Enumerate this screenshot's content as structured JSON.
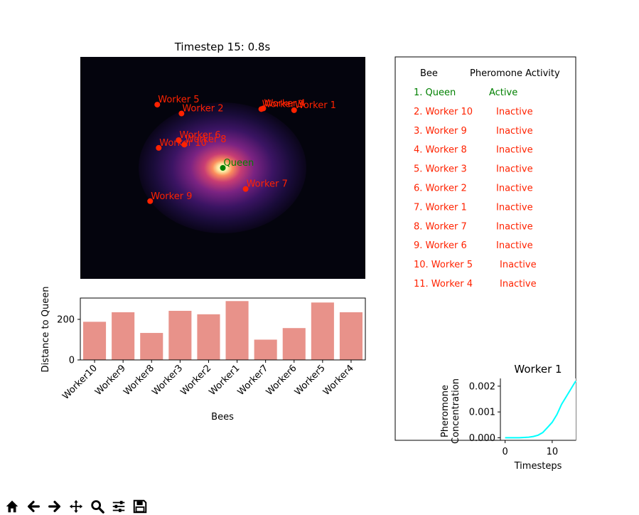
{
  "chart_data": [
    {
      "type": "scatter",
      "title": "Timestep 15: 0.8s",
      "xlim": [
        0,
        100
      ],
      "ylim": [
        0,
        100
      ],
      "background": "heatmap",
      "heatmap_center": [
        50,
        50
      ],
      "points": [
        {
          "name": "Queen",
          "x": 50,
          "y": 50,
          "color": "#008000"
        },
        {
          "name": "Worker 5",
          "x": 27,
          "y": 78.5,
          "color": "#ff2200"
        },
        {
          "name": "Worker 2",
          "x": 35.5,
          "y": 74.5,
          "color": "#ff2200"
        },
        {
          "name": "Worker 3",
          "x": 63.5,
          "y": 76.5,
          "color": "#ff2200"
        },
        {
          "name": "Worker 4",
          "x": 64.2,
          "y": 76.8,
          "color": "#ff2200"
        },
        {
          "name": "Worker 1",
          "x": 75,
          "y": 76,
          "color": "#ff2200"
        },
        {
          "name": "Worker 6",
          "x": 34.5,
          "y": 62.5,
          "color": "#ff2200"
        },
        {
          "name": "Worker 8",
          "x": 36.5,
          "y": 60.5,
          "color": "#ff2200"
        },
        {
          "name": "Worker 10",
          "x": 27.5,
          "y": 59,
          "color": "#ff2200"
        },
        {
          "name": "Worker 7",
          "x": 58,
          "y": 40.5,
          "color": "#ff2200"
        },
        {
          "name": "Worker 9",
          "x": 24.5,
          "y": 35,
          "color": "#ff2200"
        }
      ]
    },
    {
      "type": "bar",
      "categories": [
        "Worker10",
        "Worker9",
        "Worker8",
        "Worker3",
        "Worker2",
        "Worker1",
        "Worker7",
        "Worker6",
        "Worker5",
        "Worker4"
      ],
      "values": [
        188,
        235,
        133,
        242,
        225,
        290,
        100,
        157,
        283,
        235
      ],
      "xlabel": "Bees",
      "ylabel": "Distance to Queen",
      "ylim": [
        0,
        305
      ],
      "yticks": [
        0,
        200
      ],
      "bar_color": "#e8928a"
    },
    {
      "type": "line",
      "title": "Worker 1",
      "xlabel": "Timesteps",
      "ylabel": "Pheromone\nConcentration",
      "x": [
        0,
        1,
        2,
        3,
        4,
        5,
        6,
        7,
        8,
        9,
        10,
        11,
        12,
        13,
        14,
        15
      ],
      "y": [
        0.0,
        0.0,
        0.0,
        0.0,
        1e-05,
        2e-05,
        5e-05,
        0.0001,
        0.0002,
        0.0004,
        0.0006,
        0.0009,
        0.0013,
        0.0016,
        0.0019,
        0.0022
      ],
      "xlim": [
        -1,
        15
      ],
      "ylim": [
        -0.0001,
        0.0023
      ],
      "xticks": [
        "0",
        "10"
      ],
      "yticks": [
        "0.000",
        "0.001",
        "0.002"
      ],
      "color": "#00ffff"
    },
    {
      "type": "table",
      "columns": [
        "Bee",
        "Pheromone Activity"
      ],
      "rows": [
        {
          "bee": "1. Queen",
          "status": "Active",
          "color": "#008000"
        },
        {
          "bee": "2. Worker 10",
          "status": "Inactive",
          "color": "#ff2200"
        },
        {
          "bee": "3. Worker 9",
          "status": "Inactive",
          "color": "#ff2200"
        },
        {
          "bee": "4. Worker 8",
          "status": "Inactive",
          "color": "#ff2200"
        },
        {
          "bee": "5. Worker 3",
          "status": "Inactive",
          "color": "#ff2200"
        },
        {
          "bee": "6. Worker 2",
          "status": "Inactive",
          "color": "#ff2200"
        },
        {
          "bee": "7. Worker 1",
          "status": "Inactive",
          "color": "#ff2200"
        },
        {
          "bee": "8. Worker 7",
          "status": "Inactive",
          "color": "#ff2200"
        },
        {
          "bee": "9. Worker 6",
          "status": "Inactive",
          "color": "#ff2200"
        },
        {
          "bee": "10. Worker 5",
          "status": "Inactive",
          "color": "#ff2200"
        },
        {
          "bee": "11. Worker 4",
          "status": "Inactive",
          "color": "#ff2200"
        }
      ]
    }
  ],
  "toolbar": {
    "buttons": [
      "home-icon",
      "back-icon",
      "forward-icon",
      "pan-icon",
      "zoom-icon",
      "configure-subplots-icon",
      "save-icon"
    ]
  }
}
